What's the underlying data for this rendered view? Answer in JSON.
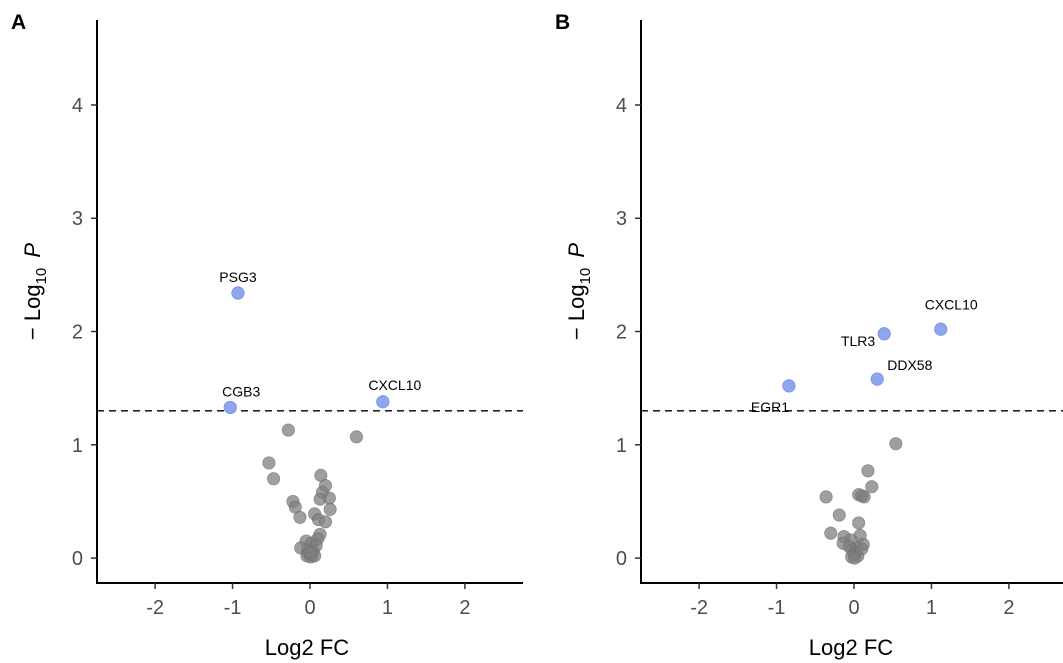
{
  "figure": {
    "panels": [
      "A",
      "B"
    ]
  },
  "chart_data": [
    {
      "panel": "A",
      "type": "scatter",
      "title": "",
      "xlabel": "Log2 FC",
      "ylabel_prefix": "− Log",
      "ylabel_sub": "10",
      "ylabel_var": "P",
      "xlim": [
        -2.75,
        2.75
      ],
      "ylim": [
        -0.22,
        4.75
      ],
      "x_ticks": [
        -2,
        -1,
        0,
        1,
        2
      ],
      "x_tick_labels": [
        "-2",
        "-1",
        "0",
        "1",
        "2"
      ],
      "y_ticks": [
        0,
        1,
        2,
        3,
        4
      ],
      "y_tick_labels": [
        "0",
        "1",
        "2",
        "3",
        "4"
      ],
      "threshold": 1.3,
      "threshold_style": "dashed",
      "grid": false,
      "colors": {
        "significant": "#8ea6ee",
        "non_significant": "#7f7f7f"
      },
      "series": [
        {
          "role": "significant",
          "points": [
            {
              "x": -0.93,
              "y": 2.34,
              "label": "PSG3"
            },
            {
              "x": -1.03,
              "y": 1.33,
              "label": "CGB3"
            },
            {
              "x": 0.94,
              "y": 1.38,
              "label": "CXCL10"
            }
          ]
        },
        {
          "role": "non_significant",
          "points": [
            {
              "x": -0.28,
              "y": 1.13
            },
            {
              "x": 0.6,
              "y": 1.07
            },
            {
              "x": -0.53,
              "y": 0.84
            },
            {
              "x": -0.47,
              "y": 0.7
            },
            {
              "x": 0.14,
              "y": 0.73
            },
            {
              "x": 0.2,
              "y": 0.64
            },
            {
              "x": 0.16,
              "y": 0.58
            },
            {
              "x": 0.13,
              "y": 0.52
            },
            {
              "x": 0.25,
              "y": 0.53
            },
            {
              "x": -0.22,
              "y": 0.5
            },
            {
              "x": -0.19,
              "y": 0.45
            },
            {
              "x": 0.26,
              "y": 0.43
            },
            {
              "x": 0.06,
              "y": 0.39
            },
            {
              "x": -0.13,
              "y": 0.36
            },
            {
              "x": 0.11,
              "y": 0.34
            },
            {
              "x": 0.2,
              "y": 0.32
            },
            {
              "x": 0.13,
              "y": 0.21
            },
            {
              "x": 0.1,
              "y": 0.17
            },
            {
              "x": -0.05,
              "y": 0.15
            },
            {
              "x": 0.02,
              "y": 0.13
            },
            {
              "x": 0.08,
              "y": 0.11
            },
            {
              "x": -0.12,
              "y": 0.09
            },
            {
              "x": -0.03,
              "y": 0.07
            },
            {
              "x": 0.04,
              "y": 0.06
            },
            {
              "x": -0.02,
              "y": 0.04
            },
            {
              "x": 0.03,
              "y": 0.03
            },
            {
              "x": -0.04,
              "y": 0.02
            },
            {
              "x": 0.01,
              "y": 0.01
            },
            {
              "x": 0.06,
              "y": 0.02
            },
            {
              "x": 0.0,
              "y": 0.05
            }
          ]
        }
      ]
    },
    {
      "panel": "B",
      "type": "scatter",
      "title": "",
      "xlabel": "Log2 FC",
      "ylabel_prefix": "− Log",
      "ylabel_sub": "10",
      "ylabel_var": "P",
      "xlim": [
        -2.75,
        2.75
      ],
      "ylim": [
        -0.22,
        4.75
      ],
      "x_ticks": [
        -2,
        -1,
        0,
        1,
        2
      ],
      "x_tick_labels": [
        "-2",
        "-1",
        "0",
        "1",
        "2"
      ],
      "y_ticks": [
        0,
        1,
        2,
        3,
        4
      ],
      "y_tick_labels": [
        "0",
        "1",
        "2",
        "3",
        "4"
      ],
      "threshold": 1.3,
      "threshold_style": "dashed",
      "grid": false,
      "colors": {
        "significant": "#8ea6ee",
        "non_significant": "#7f7f7f"
      },
      "series": [
        {
          "role": "significant",
          "points": [
            {
              "x": 1.12,
              "y": 2.02,
              "label": "CXCL10"
            },
            {
              "x": 0.39,
              "y": 1.98,
              "label": "TLR3"
            },
            {
              "x": 0.3,
              "y": 1.58,
              "label": "DDX58"
            },
            {
              "x": -0.84,
              "y": 1.52,
              "label": "EGR1"
            }
          ]
        },
        {
          "role": "non_significant",
          "points": [
            {
              "x": 0.54,
              "y": 1.01
            },
            {
              "x": 0.18,
              "y": 0.77
            },
            {
              "x": 0.23,
              "y": 0.63
            },
            {
              "x": 0.06,
              "y": 0.56
            },
            {
              "x": 0.13,
              "y": 0.54
            },
            {
              "x": -0.36,
              "y": 0.54
            },
            {
              "x": 0.1,
              "y": 0.55
            },
            {
              "x": -0.19,
              "y": 0.38
            },
            {
              "x": 0.06,
              "y": 0.31
            },
            {
              "x": -0.3,
              "y": 0.22
            },
            {
              "x": 0.08,
              "y": 0.2
            },
            {
              "x": -0.13,
              "y": 0.19
            },
            {
              "x": -0.04,
              "y": 0.16
            },
            {
              "x": 0.12,
              "y": 0.12
            },
            {
              "x": -0.14,
              "y": 0.13
            },
            {
              "x": -0.06,
              "y": 0.1
            },
            {
              "x": 0.04,
              "y": 0.09
            },
            {
              "x": -0.02,
              "y": 0.07
            },
            {
              "x": 0.02,
              "y": 0.05
            },
            {
              "x": 0.0,
              "y": 0.03
            },
            {
              "x": 0.05,
              "y": 0.02
            },
            {
              "x": -0.03,
              "y": 0.01
            },
            {
              "x": 0.01,
              "y": 0.0
            },
            {
              "x": 0.1,
              "y": 0.08
            }
          ]
        }
      ]
    }
  ]
}
